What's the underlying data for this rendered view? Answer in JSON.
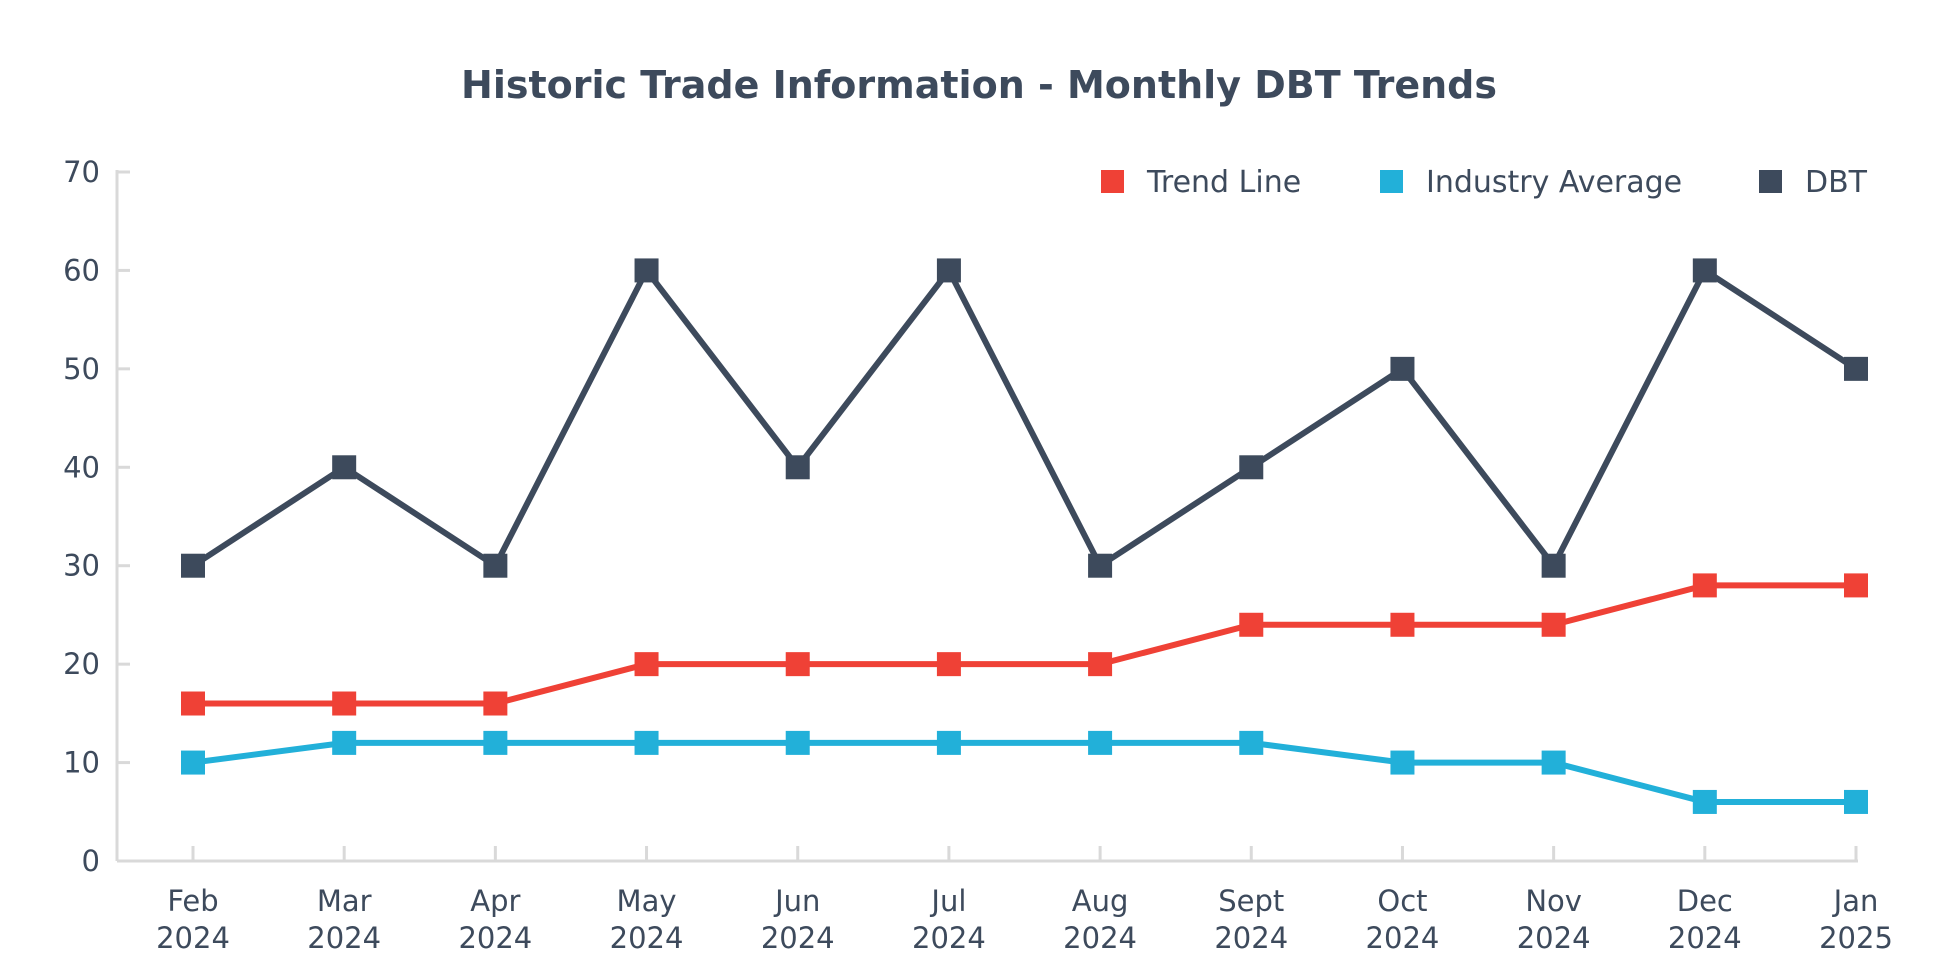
{
  "chart_data": {
    "type": "line",
    "title": "Historic Trade Information - Monthly DBT Trends",
    "xlabel": "",
    "ylabel": "",
    "ylim": [
      0,
      70
    ],
    "yticks": [
      0,
      10,
      20,
      30,
      40,
      50,
      60,
      70
    ],
    "grid": false,
    "legend_position": "top-right",
    "categories": [
      [
        "Feb",
        "2024"
      ],
      [
        "Mar",
        "2024"
      ],
      [
        "Apr",
        "2024"
      ],
      [
        "May",
        "2024"
      ],
      [
        "Jun",
        "2024"
      ],
      [
        "Jul",
        "2024"
      ],
      [
        "Aug",
        "2024"
      ],
      [
        "Sept",
        "2024"
      ],
      [
        "Oct",
        "2024"
      ],
      [
        "Nov",
        "2024"
      ],
      [
        "Dec",
        "2024"
      ],
      [
        "Jan",
        "2025"
      ]
    ],
    "series": [
      {
        "name": "Trend Line",
        "color": "#ef4136",
        "values": [
          16,
          16,
          16,
          20,
          20,
          20,
          20,
          24,
          24,
          24,
          28,
          28
        ]
      },
      {
        "name": "Industry Average",
        "color": "#22b0d9",
        "values": [
          10,
          12,
          12,
          12,
          12,
          12,
          12,
          12,
          10,
          10,
          6,
          6
        ]
      },
      {
        "name": "DBT",
        "color": "#3d4a5c",
        "values": [
          30,
          40,
          30,
          60,
          40,
          60,
          30,
          40,
          50,
          30,
          60,
          50
        ]
      }
    ],
    "draw_order": [
      "DBT",
      "Trend Line",
      "Industry Average"
    ]
  }
}
